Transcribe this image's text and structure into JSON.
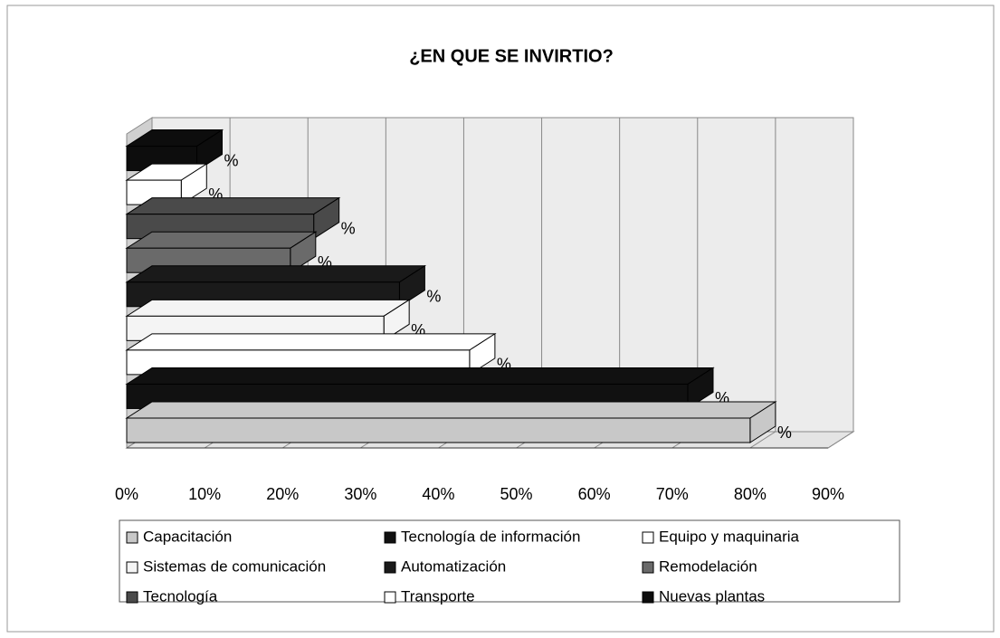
{
  "chart_data": {
    "type": "bar",
    "orientation": "horizontal",
    "title": "¿EN QUE SE INVIRTIO?",
    "series": [
      {
        "name": "Capacitación",
        "color": "#c8c8c8",
        "values": [
          80
        ],
        "value_labels": [
          "%"
        ]
      },
      {
        "name": "Tecnología de información",
        "color": "#111111",
        "values": [
          72
        ],
        "value_labels": [
          "%"
        ]
      },
      {
        "name": "Equipo y maquinaria",
        "color": "#ffffff",
        "values": [
          44
        ],
        "value_labels": [
          "%"
        ]
      },
      {
        "name": "Sistemas de comunicación",
        "color": "#f4f4f4",
        "values": [
          33
        ],
        "value_labels": [
          "%"
        ]
      },
      {
        "name": "Automatización",
        "color": "#1a1a1a",
        "values": [
          35
        ],
        "value_labels": [
          "%"
        ]
      },
      {
        "name": "Remodelación",
        "color": "#6a6a6a",
        "values": [
          21
        ],
        "value_labels": [
          "%"
        ]
      },
      {
        "name": "Tecnología",
        "color": "#4a4a4a",
        "values": [
          24
        ],
        "value_labels": [
          "%"
        ]
      },
      {
        "name": "Transporte",
        "color": "#ffffff",
        "values": [
          7
        ],
        "value_labels": [
          "%"
        ]
      },
      {
        "name": "Nuevas plantas",
        "color": "#0d0d0d",
        "values": [
          9
        ],
        "value_labels": [
          "%"
        ]
      }
    ],
    "xlim": [
      0,
      90
    ],
    "xticks": [
      {
        "value": 0,
        "label": "0%"
      },
      {
        "value": 10,
        "label": "10%"
      },
      {
        "value": 20,
        "label": "20%"
      },
      {
        "value": 30,
        "label": "30%"
      },
      {
        "value": 40,
        "label": "40%"
      },
      {
        "value": 50,
        "label": "50%"
      },
      {
        "value": 60,
        "label": "60%"
      },
      {
        "value": 70,
        "label": "70%"
      },
      {
        "value": 80,
        "label": "80%"
      },
      {
        "value": 90,
        "label": "90%"
      }
    ],
    "grid": true,
    "legend": "bottom"
  }
}
